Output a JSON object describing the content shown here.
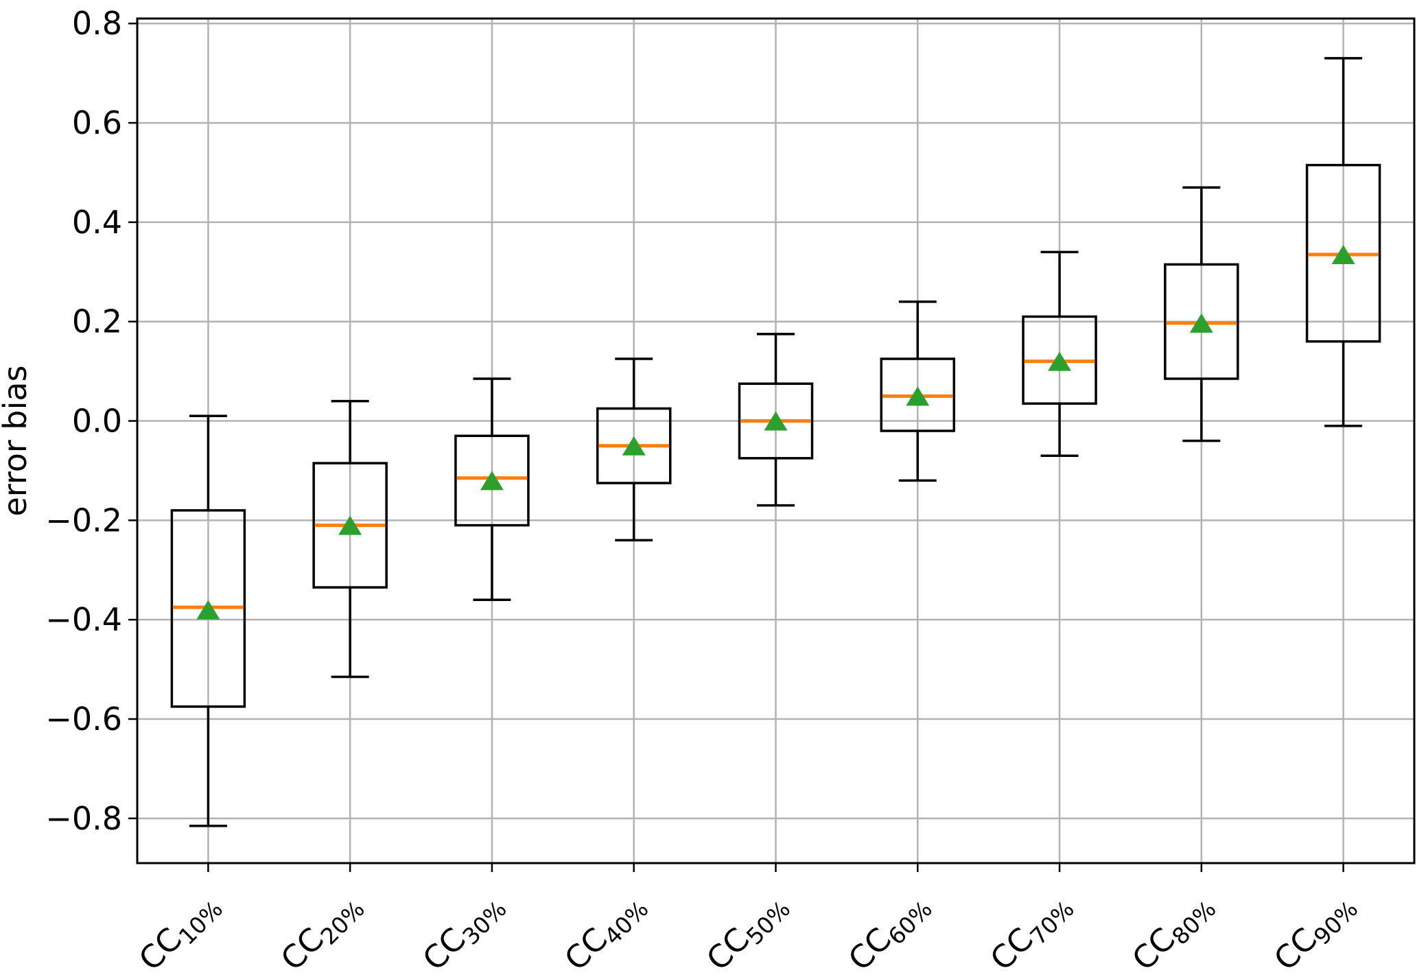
{
  "figure": {
    "background": "#ffffff"
  },
  "chart_data": {
    "type": "boxplot",
    "title": "",
    "xlabel": "",
    "ylabel": "error bias",
    "ylim": [
      -0.89,
      0.81
    ],
    "grid": true,
    "yticks": [
      {
        "value": 0.8,
        "label": "0.8"
      },
      {
        "value": 0.6,
        "label": "0.6"
      },
      {
        "value": 0.4,
        "label": "0.4"
      },
      {
        "value": 0.2,
        "label": "0.2"
      },
      {
        "value": 0.0,
        "label": "0.0"
      },
      {
        "value": -0.2,
        "label": "−0.2"
      },
      {
        "value": -0.4,
        "label": "−0.4"
      },
      {
        "value": -0.6,
        "label": "−0.6"
      },
      {
        "value": -0.8,
        "label": "−0.8"
      }
    ],
    "categories": [
      {
        "text": "CC10%",
        "base": "CC",
        "subscript": "10%"
      },
      {
        "text": "CC20%",
        "base": "CC",
        "subscript": "20%"
      },
      {
        "text": "CC30%",
        "base": "CC",
        "subscript": "30%"
      },
      {
        "text": "CC40%",
        "base": "CC",
        "subscript": "40%"
      },
      {
        "text": "CC50%",
        "base": "CC",
        "subscript": "50%"
      },
      {
        "text": "CC60%",
        "base": "CC",
        "subscript": "60%"
      },
      {
        "text": "CC70%",
        "base": "CC",
        "subscript": "70%"
      },
      {
        "text": "CC80%",
        "base": "CC",
        "subscript": "80%"
      },
      {
        "text": "CC90%",
        "base": "CC",
        "subscript": "90%"
      }
    ],
    "boxes": [
      {
        "category": "CC10%",
        "whisker_low": -0.815,
        "q1": -0.575,
        "median": -0.375,
        "mean": -0.38,
        "q3": -0.18,
        "whisker_high": 0.01
      },
      {
        "category": "CC20%",
        "whisker_low": -0.515,
        "q1": -0.335,
        "median": -0.21,
        "mean": -0.21,
        "q3": -0.085,
        "whisker_high": 0.04
      },
      {
        "category": "CC30%",
        "whisker_low": -0.36,
        "q1": -0.21,
        "median": -0.115,
        "mean": -0.12,
        "q3": -0.03,
        "whisker_high": 0.085
      },
      {
        "category": "CC40%",
        "whisker_low": -0.24,
        "q1": -0.125,
        "median": -0.05,
        "mean": -0.05,
        "q3": 0.025,
        "whisker_high": 0.125
      },
      {
        "category": "CC50%",
        "whisker_low": -0.17,
        "q1": -0.075,
        "median": 0.0,
        "mean": 0.0,
        "q3": 0.075,
        "whisker_high": 0.175
      },
      {
        "category": "CC60%",
        "whisker_low": -0.12,
        "q1": -0.02,
        "median": 0.05,
        "mean": 0.05,
        "q3": 0.125,
        "whisker_high": 0.24
      },
      {
        "category": "CC70%",
        "whisker_low": -0.07,
        "q1": 0.035,
        "median": 0.12,
        "mean": 0.12,
        "q3": 0.21,
        "whisker_high": 0.34
      },
      {
        "category": "CC80%",
        "whisker_low": -0.04,
        "q1": 0.085,
        "median": 0.197,
        "mean": 0.197,
        "q3": 0.315,
        "whisker_high": 0.47
      },
      {
        "category": "CC90%",
        "whisker_low": -0.01,
        "q1": 0.16,
        "median": 0.335,
        "mean": 0.335,
        "q3": 0.515,
        "whisker_high": 0.73
      }
    ],
    "style": {
      "median_color": "#ff7f0e",
      "mean_marker_color": "#2ca02c",
      "mean_marker_shape": "triangle-up",
      "grid_color": "#b2b2b2",
      "line_color": "#000000",
      "background": "#ffffff",
      "legend_position": "none"
    }
  }
}
